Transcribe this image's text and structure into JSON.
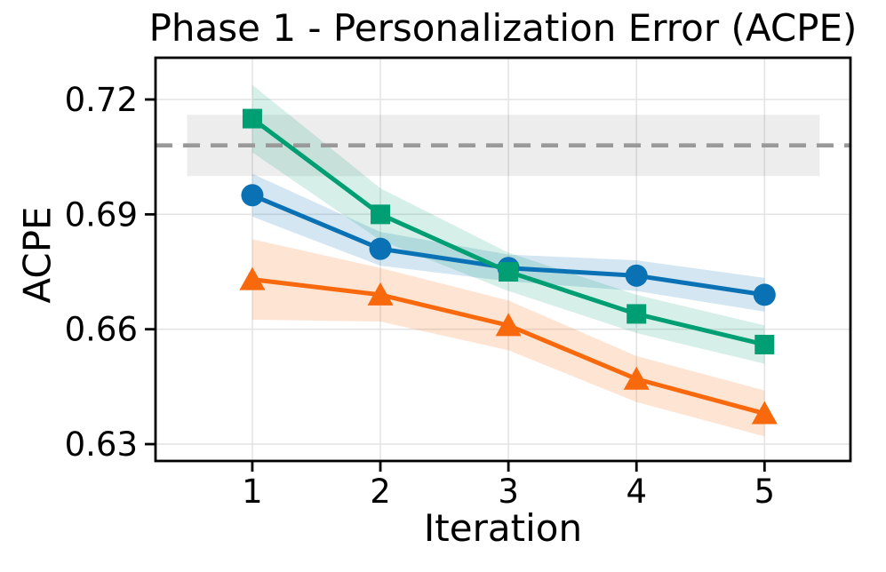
{
  "chart_data": {
    "type": "line",
    "title": "Phase 1 - Personalization Error (ACPE)",
    "xlabel": "Iteration",
    "ylabel": "ACPE",
    "x": [
      1,
      2,
      3,
      4,
      5
    ],
    "x_tick_labels": [
      "1",
      "2",
      "3",
      "4",
      "5"
    ],
    "y_ticks": [
      0.63,
      0.66,
      0.69,
      0.72
    ],
    "y_tick_labels": [
      "0.63",
      "0.66",
      "0.69",
      "0.72"
    ],
    "xlim": [
      0.244,
      5.671
    ],
    "ylim": [
      0.6256,
      0.7309
    ],
    "grid": true,
    "legend": "none",
    "background_color": "#ffffff",
    "grid_color": "#e4e4e4",
    "baseline": {
      "value": 0.708,
      "band": [
        0.7,
        0.716
      ],
      "band_x": [
        0.49,
        5.43
      ],
      "style": "dashed",
      "color": "#999999",
      "band_color": "#808080",
      "band_opacity": 0.14
    },
    "series": [
      {
        "id": "blue",
        "marker": "circle",
        "color": "#0A72B4",
        "values": [
          0.695,
          0.681,
          0.676,
          0.674,
          0.669
        ],
        "band_halfwidth": [
          0.0056,
          0.0044,
          0.0035,
          0.004,
          0.0044
        ],
        "band_opacity": 0.18
      },
      {
        "id": "green",
        "marker": "square",
        "color": "#009E73",
        "values": [
          0.715,
          0.69,
          0.675,
          0.664,
          0.656
        ],
        "band_halfwidth": [
          0.0088,
          0.0068,
          0.005,
          0.005,
          0.005
        ],
        "band_opacity": 0.16
      },
      {
        "id": "orange",
        "marker": "triangle-up",
        "color": "#F8690D",
        "values": [
          0.673,
          0.669,
          0.661,
          0.647,
          0.638
        ],
        "band_halfwidth": [
          0.0105,
          0.007,
          0.0065,
          0.006,
          0.006
        ],
        "band_opacity": 0.18
      }
    ]
  }
}
